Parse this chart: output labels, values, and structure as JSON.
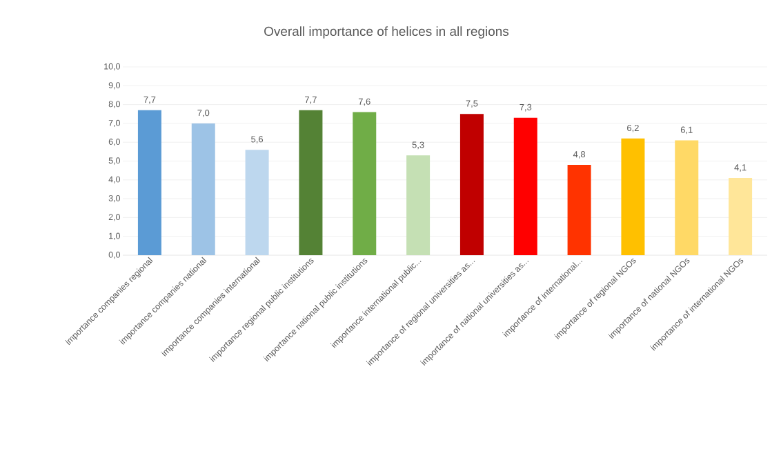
{
  "chart_data": {
    "type": "bar",
    "title": "Overall importance of helices in all regions",
    "categories": [
      "importance companies regional",
      "importance companies national",
      "importance companies international",
      "importance regional public institutions",
      "importance national public institutions",
      "importance international public...",
      "importance of regional universities as...",
      "importance of national universities as...",
      "importance of international...",
      "importance of regional NGOs",
      "importance of national NGOs",
      "importance of international NGOs"
    ],
    "values": [
      7.7,
      7.0,
      5.6,
      7.7,
      7.6,
      5.3,
      7.5,
      7.3,
      4.8,
      6.2,
      6.1,
      4.1
    ],
    "value_labels": [
      "7,7",
      "7,0",
      "5,6",
      "7,7",
      "7,6",
      "5,3",
      "7,5",
      "7,3",
      "4,8",
      "6,2",
      "6,1",
      "4,1"
    ],
    "colors": [
      "#5b9bd5",
      "#9dc3e6",
      "#bdd7ee",
      "#548235",
      "#70ad47",
      "#c5e0b4",
      "#c00000",
      "#ff0000",
      "#ff3300",
      "#ffc000",
      "#ffd966",
      "#ffe699"
    ],
    "ylim": [
      0,
      10
    ],
    "yticks": [
      {
        "value": 0,
        "label": "0,0"
      },
      {
        "value": 1,
        "label": "1,0"
      },
      {
        "value": 2,
        "label": "2,0"
      },
      {
        "value": 3,
        "label": "3,0"
      },
      {
        "value": 4,
        "label": "4,0"
      },
      {
        "value": 5,
        "label": "5,0"
      },
      {
        "value": 6,
        "label": "6,0"
      },
      {
        "value": 7,
        "label": "7,0"
      },
      {
        "value": 8,
        "label": "8,0"
      },
      {
        "value": 9,
        "label": "9,0"
      },
      {
        "value": 10,
        "label": "10,0"
      }
    ],
    "grid": "y"
  }
}
